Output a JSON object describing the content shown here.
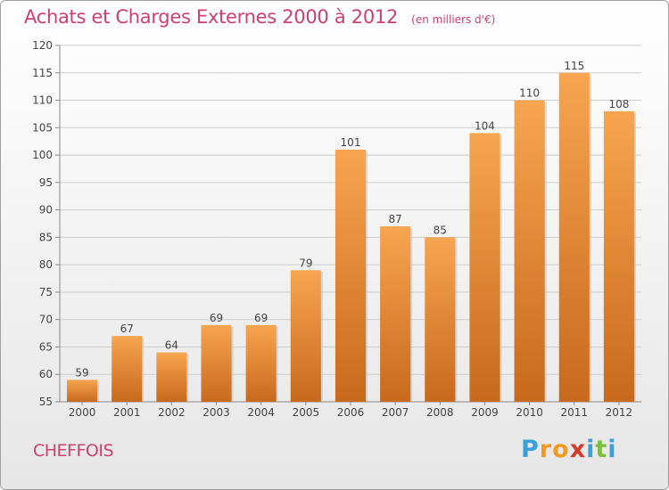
{
  "header": {
    "title": "Achats et Charges Externes 2000 à 2012",
    "subtitle": "(en milliers d'€)"
  },
  "footer": {
    "commune": "CHEFFOIS",
    "logo": {
      "letters": [
        "P",
        "r",
        "o",
        "x",
        "i",
        "t",
        "i"
      ],
      "colors": [
        "#3aa0d8",
        "#f19a1e",
        "#f19a1e",
        "#d23c2c",
        "#3aa0d8",
        "#7bbf3f",
        "#3aa0d8"
      ]
    }
  },
  "colors": {
    "bar_top": "#f7a550",
    "bar_bottom": "#c8691c",
    "grid": "#cccccc",
    "title": "#d0406e"
  },
  "chart_data": {
    "type": "bar",
    "title": "Achats et Charges Externes 2000 à 2012",
    "subtitle": "(en milliers d'€)",
    "categories": [
      "2000",
      "2001",
      "2002",
      "2003",
      "2004",
      "2005",
      "2006",
      "2007",
      "2008",
      "2009",
      "2010",
      "2011",
      "2012"
    ],
    "values": [
      59,
      67,
      64,
      69,
      69,
      79,
      101,
      87,
      85,
      104,
      110,
      115,
      108
    ],
    "ylim": [
      55,
      120
    ],
    "yticks": [
      55,
      60,
      65,
      70,
      75,
      80,
      85,
      90,
      95,
      100,
      105,
      110,
      115,
      120
    ],
    "grid": true
  }
}
